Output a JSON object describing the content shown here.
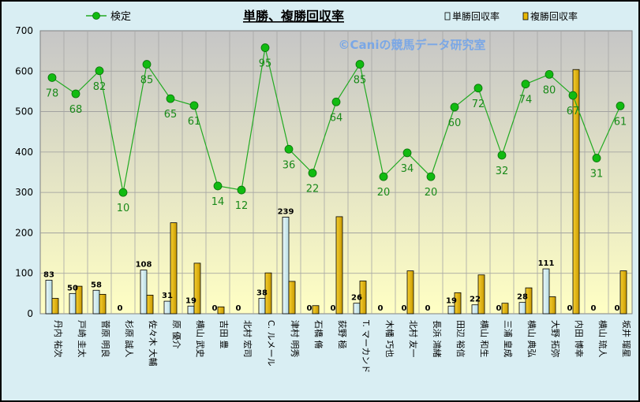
{
  "chart_data": {
    "type": "bar+line",
    "title": "単勝、複勝回収率",
    "watermark": "©Caniの競馬データ研究室",
    "legend": {
      "line": "検定",
      "bar1": "単勝回収率",
      "bar2": "複勝回収率"
    },
    "ylim": [
      0,
      700
    ],
    "yticks": [
      "0",
      "100",
      "200",
      "300",
      "400",
      "500",
      "600",
      "700"
    ],
    "categories": [
      "丹内 祐次",
      "戸崎 圭太",
      "菅原 明良",
      "杉原 誠人",
      "佐々木 大輔",
      "原 優介",
      "横山 武史",
      "吉田 豊",
      "北村 宏司",
      "C. ルメール",
      "津村 明秀",
      "石橋 脩",
      "荻野 極",
      "T. マーカンド",
      "木幡 巧也",
      "北村 友一",
      "長浜 鴻緒",
      "田辺 裕信",
      "横山 和生",
      "三浦 皇成",
      "横山 典弘",
      "大野 拓弥",
      "内田 博幸",
      "横山 琉人",
      "坂井 瑠星"
    ],
    "series": [
      {
        "name": "単勝回収率",
        "values": [
          83,
          50,
          58,
          0,
          108,
          31,
          19,
          0,
          0,
          38,
          239,
          0,
          0,
          26,
          0,
          0,
          0,
          19,
          22,
          0,
          28,
          111,
          0,
          0,
          0
        ]
      },
      {
        "name": "複勝回収率",
        "values": [
          38,
          68,
          48,
          0,
          46,
          225,
          125,
          17,
          0,
          101,
          80,
          20,
          240,
          81,
          0,
          106,
          0,
          52,
          96,
          26,
          64,
          42,
          604,
          0,
          106
        ]
      },
      {
        "name": "検定",
        "values": [
          584,
          544,
          601,
          300,
          617,
          532,
          515,
          316,
          306,
          658,
          407,
          348,
          524,
          617,
          339,
          398,
          339,
          511,
          558,
          392,
          568,
          592,
          540,
          385,
          514
        ],
        "labels": [
          "78",
          "68",
          "82",
          "10",
          "85",
          "65",
          "61",
          "14",
          "12",
          "95",
          "36",
          "22",
          "64",
          "85",
          "20",
          "34",
          "20",
          "60",
          "72",
          "32",
          "74",
          "80",
          "67",
          "31",
          "61"
        ]
      }
    ],
    "colors": {
      "bar1": "#d4f0f4",
      "bar2": "#e8b800",
      "line": "#22aa22",
      "marker": "#11bb11",
      "label": "#1a8a1a",
      "watermark": "#7aa7e6"
    }
  }
}
